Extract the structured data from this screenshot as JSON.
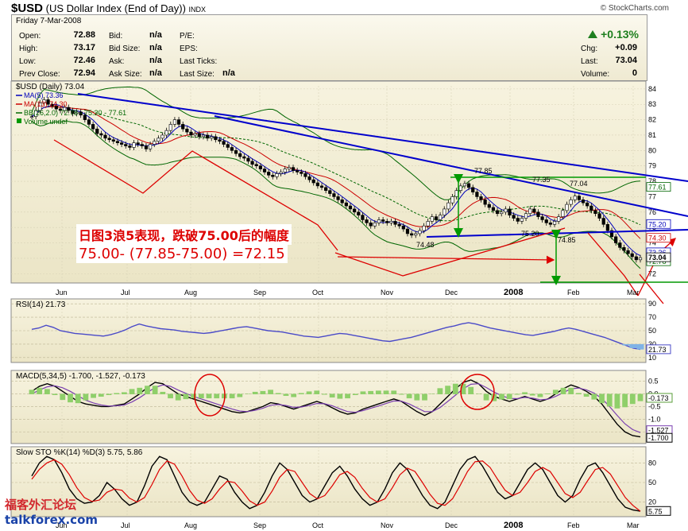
{
  "header": {
    "symbol": "$USD",
    "name": "(US Dollar Index (End of Day))",
    "exchange": "INDX",
    "site": "© StockCharts.com"
  },
  "quote": {
    "date": "Friday 7-Mar-2008",
    "open_label": "Open:",
    "open": "72.88",
    "high_label": "High:",
    "high": "73.17",
    "low_label": "Low:",
    "low": "72.46",
    "prev_label": "Prev Close:",
    "prev": "72.94",
    "bid_label": "Bid:",
    "bid": "n/a",
    "bidsize_label": "Bid Size:",
    "bidsize": "n/a",
    "ask_label": "Ask:",
    "ask": "n/a",
    "asksize_label": "Ask Size:",
    "asksize": "n/a",
    "pe_label": "P/E:",
    "eps_label": "EPS:",
    "lastticks_label": "Last Ticks:",
    "lastsize_label": "Last Size:",
    "lastsize": "n/a",
    "pct_change": "+0.13%",
    "chg_label": "Chg:",
    "chg": "+0.09",
    "last_label": "Last:",
    "last": "73.04",
    "volume_label": "Volume:",
    "volume": "0"
  },
  "annotations": {
    "line1": "日图3浪5表现，跌破75.00后的幅度",
    "line2": "75.00- (77.85-75.00) =72.15",
    "level_7785": "77.85",
    "level_7735": "77.35",
    "level_7704": "77.04",
    "level_7520": "75.20",
    "level_7485": "74.85",
    "level_7448": "74.48"
  },
  "watermark": {
    "top": "福客外汇论坛",
    "bottom": "talkforex.com"
  },
  "colors": {
    "panel_bg": "#f3efd8",
    "blue_line": "#0000cc",
    "red_line": "#dd0000",
    "green_line": "#009900",
    "ma5": "#0000bb",
    "ma13": "#cc0000",
    "bb": "#006600"
  },
  "x_axis_labels": [
    "Jun",
    "Jul",
    "Aug",
    "Sep",
    "Oct",
    "Nov",
    "Dec",
    "2008",
    "Feb",
    "Mar"
  ],
  "chart_data": [
    {
      "type": "candlestick",
      "title": "$USD (Daily) 73.04",
      "legend": [
        {
          "name": "MA(5) 73.36",
          "color": "#0000bb"
        },
        {
          "name": "MA(13) 74.30",
          "color": "#cc0000"
        },
        {
          "name": "BB(26,2.0) 72.78 - 75.20 - 77.61",
          "color": "#006600"
        },
        {
          "name": "Volume undef",
          "color": "#009900"
        }
      ],
      "y_ticks": [
        "84",
        "83",
        "82",
        "81",
        "80",
        "79",
        "78",
        "77",
        "76",
        "75",
        "74",
        "73",
        "72"
      ],
      "ylim": [
        71.6,
        84.2
      ],
      "right_tags": [
        {
          "label": "77.61",
          "value": 77.61
        },
        {
          "label": "75.20",
          "value": 75.2
        },
        {
          "label": "74.30",
          "value": 74.3
        },
        {
          "label": "73.36",
          "value": 73.36
        },
        {
          "label": "72.78",
          "value": 72.78
        },
        {
          "label": "73.04",
          "value": 73.04
        }
      ],
      "close_series": [
        82.2,
        82.6,
        83.1,
        83.3,
        83.0,
        82.9,
        82.7,
        82.6,
        82.8,
        82.6,
        82.4,
        82.5,
        82.3,
        82.0,
        81.7,
        81.4,
        81.1,
        81.0,
        80.8,
        80.7,
        80.6,
        80.5,
        80.4,
        80.3,
        80.2,
        80.5,
        80.4,
        80.3,
        80.1,
        80.4,
        80.6,
        80.8,
        81.0,
        81.3,
        81.7,
        82.0,
        81.7,
        81.4,
        81.2,
        81.0,
        81.1,
        80.9,
        81.0,
        80.8,
        80.9,
        80.7,
        80.6,
        80.4,
        80.2,
        80.0,
        79.8,
        79.6,
        79.5,
        79.3,
        79.1,
        79.0,
        78.8,
        78.6,
        78.4,
        78.3,
        78.5,
        78.6,
        78.8,
        78.9,
        78.7,
        78.6,
        78.5,
        78.3,
        78.1,
        77.9,
        77.7,
        77.6,
        77.4,
        77.2,
        77.0,
        76.8,
        76.6,
        76.4,
        76.2,
        76.0,
        75.8,
        75.5,
        75.3,
        75.1,
        75.3,
        75.5,
        75.4,
        75.3,
        75.4,
        75.2,
        75.1,
        74.9,
        74.6,
        74.5,
        74.6,
        74.8,
        75.1,
        75.4,
        75.7,
        75.5,
        75.8,
        76.2,
        76.6,
        77.0,
        77.4,
        77.7,
        77.85,
        77.6,
        77.3,
        77.0,
        76.8,
        76.5,
        76.3,
        76.1,
        75.9,
        76.0,
        76.2,
        75.8,
        75.6,
        75.4,
        75.6,
        75.9,
        76.2,
        76.0,
        75.7,
        75.5,
        75.3,
        75.2,
        75.4,
        75.7,
        76.1,
        76.5,
        76.8,
        77.04,
        76.8,
        76.6,
        76.4,
        76.1,
        75.9,
        75.6,
        75.2,
        74.8,
        74.4,
        74.0,
        73.7,
        73.5,
        73.3,
        73.1,
        72.9,
        73.04
      ]
    },
    {
      "type": "line",
      "title": "RSI(14) 21.73",
      "y_ticks": [
        "90",
        "70",
        "50",
        "30",
        "10"
      ],
      "right_tag": "21.73",
      "ylim": [
        5,
        95
      ],
      "series": [
        {
          "values": [
            52,
            54,
            58,
            55,
            50,
            48,
            46,
            45,
            44,
            43,
            42,
            44,
            47,
            51,
            56,
            60,
            57,
            55,
            53,
            52,
            51,
            49,
            48,
            47,
            46,
            47,
            49,
            51,
            53,
            55,
            56,
            54,
            52,
            50,
            49,
            48,
            46,
            44,
            42,
            41,
            40,
            42,
            44,
            46,
            45,
            43,
            41,
            39,
            37,
            35,
            34,
            36,
            38,
            40,
            43,
            46,
            49,
            52,
            55,
            57,
            60,
            62,
            60,
            57,
            54,
            52,
            50,
            48,
            46,
            44,
            43,
            45,
            47,
            49,
            52,
            54,
            52,
            49,
            46,
            43,
            40,
            36,
            32,
            28,
            24,
            22
          ]
        }
      ]
    },
    {
      "type": "line",
      "title": "MACD(5,34,5) -1.700, -1.527, -0.173",
      "y_ticks": [
        "0.5",
        "0.0",
        "-0.5",
        "-1.0",
        "-1.5"
      ],
      "right_tags": [
        "-0.173",
        "-1.527",
        "-1.700"
      ],
      "ylim": [
        -1.9,
        0.8
      ],
      "series": [
        {
          "name": "MACD",
          "values": [
            0.1,
            0.3,
            0.4,
            0.3,
            0.1,
            -0.1,
            -0.3,
            -0.4,
            -0.45,
            -0.5,
            -0.5,
            -0.45,
            -0.4,
            -0.2,
            0.0,
            0.25,
            0.45,
            0.4,
            0.2,
            0.0,
            -0.1,
            -0.2,
            -0.3,
            -0.4,
            -0.5,
            -0.6,
            -0.7,
            -0.75,
            -0.7,
            -0.6,
            -0.5,
            -0.35,
            -0.4,
            -0.5,
            -0.6,
            -0.5,
            -0.4,
            -0.3,
            -0.4,
            -0.55,
            -0.7,
            -0.8,
            -0.75,
            -0.6,
            -0.5,
            -0.4,
            -0.3,
            -0.2,
            -0.3,
            -0.5,
            -0.7,
            -0.85,
            -0.7,
            -0.4,
            -0.1,
            0.2,
            0.45,
            0.55,
            0.4,
            0.1,
            -0.1,
            -0.2,
            -0.3,
            -0.2,
            -0.1,
            -0.2,
            -0.3,
            -0.2,
            0.0,
            0.2,
            0.35,
            0.25,
            0.1,
            -0.1,
            -0.4,
            -0.8,
            -1.2,
            -1.5,
            -1.65,
            -1.7
          ]
        },
        {
          "name": "Signal",
          "values": [
            0.0,
            0.15,
            0.28,
            0.32,
            0.24,
            0.1,
            -0.08,
            -0.25,
            -0.36,
            -0.44,
            -0.48,
            -0.47,
            -0.44,
            -0.32,
            -0.15,
            0.05,
            0.25,
            0.35,
            0.3,
            0.15,
            0.02,
            -0.1,
            -0.2,
            -0.3,
            -0.4,
            -0.5,
            -0.6,
            -0.68,
            -0.7,
            -0.65,
            -0.57,
            -0.45,
            -0.42,
            -0.46,
            -0.53,
            -0.52,
            -0.46,
            -0.38,
            -0.39,
            -0.47,
            -0.59,
            -0.7,
            -0.73,
            -0.66,
            -0.57,
            -0.48,
            -0.38,
            -0.28,
            -0.29,
            -0.4,
            -0.55,
            -0.7,
            -0.7,
            -0.54,
            -0.3,
            -0.05,
            0.2,
            0.38,
            0.4,
            0.25,
            0.07,
            -0.07,
            -0.18,
            -0.19,
            -0.14,
            -0.17,
            -0.23,
            -0.21,
            -0.1,
            0.05,
            0.2,
            0.23,
            0.16,
            0.03,
            -0.18,
            -0.5,
            -0.85,
            -1.18,
            -1.41,
            -1.53
          ]
        }
      ]
    },
    {
      "type": "line",
      "title": "Slow STO %K(14) %D(3) 5.75, 5.86",
      "y_ticks": [
        "80",
        "50",
        "20"
      ],
      "right_tag": "5.75",
      "ylim": [
        0,
        100
      ],
      "series": [
        {
          "name": "%K",
          "values": [
            60,
            80,
            90,
            85,
            65,
            40,
            25,
            18,
            20,
            30,
            50,
            40,
            25,
            15,
            20,
            45,
            75,
            90,
            85,
            60,
            35,
            20,
            15,
            20,
            40,
            60,
            55,
            35,
            20,
            10,
            15,
            35,
            60,
            80,
            70,
            50,
            30,
            20,
            25,
            45,
            65,
            75,
            60,
            40,
            25,
            15,
            20,
            40,
            65,
            80,
            70,
            50,
            30,
            15,
            10,
            20,
            45,
            70,
            85,
            90,
            75,
            55,
            35,
            25,
            30,
            50,
            70,
            80,
            70,
            50,
            30,
            20,
            30,
            55,
            75,
            80,
            65,
            45,
            25,
            12,
            8,
            6
          ]
        },
        {
          "name": "%D",
          "values": [
            55,
            70,
            80,
            85,
            78,
            62,
            42,
            27,
            21,
            23,
            35,
            40,
            38,
            26,
            20,
            27,
            47,
            70,
            83,
            78,
            60,
            38,
            23,
            18,
            25,
            40,
            52,
            50,
            37,
            22,
            15,
            20,
            37,
            58,
            70,
            67,
            50,
            33,
            25,
            30,
            45,
            62,
            67,
            58,
            41,
            27,
            20,
            25,
            42,
            62,
            72,
            67,
            50,
            32,
            18,
            15,
            25,
            45,
            67,
            82,
            83,
            73,
            55,
            38,
            30,
            35,
            50,
            67,
            73,
            67,
            50,
            33,
            27,
            35,
            53,
            70,
            73,
            63,
            45,
            27,
            15,
            6
          ]
        }
      ]
    }
  ]
}
